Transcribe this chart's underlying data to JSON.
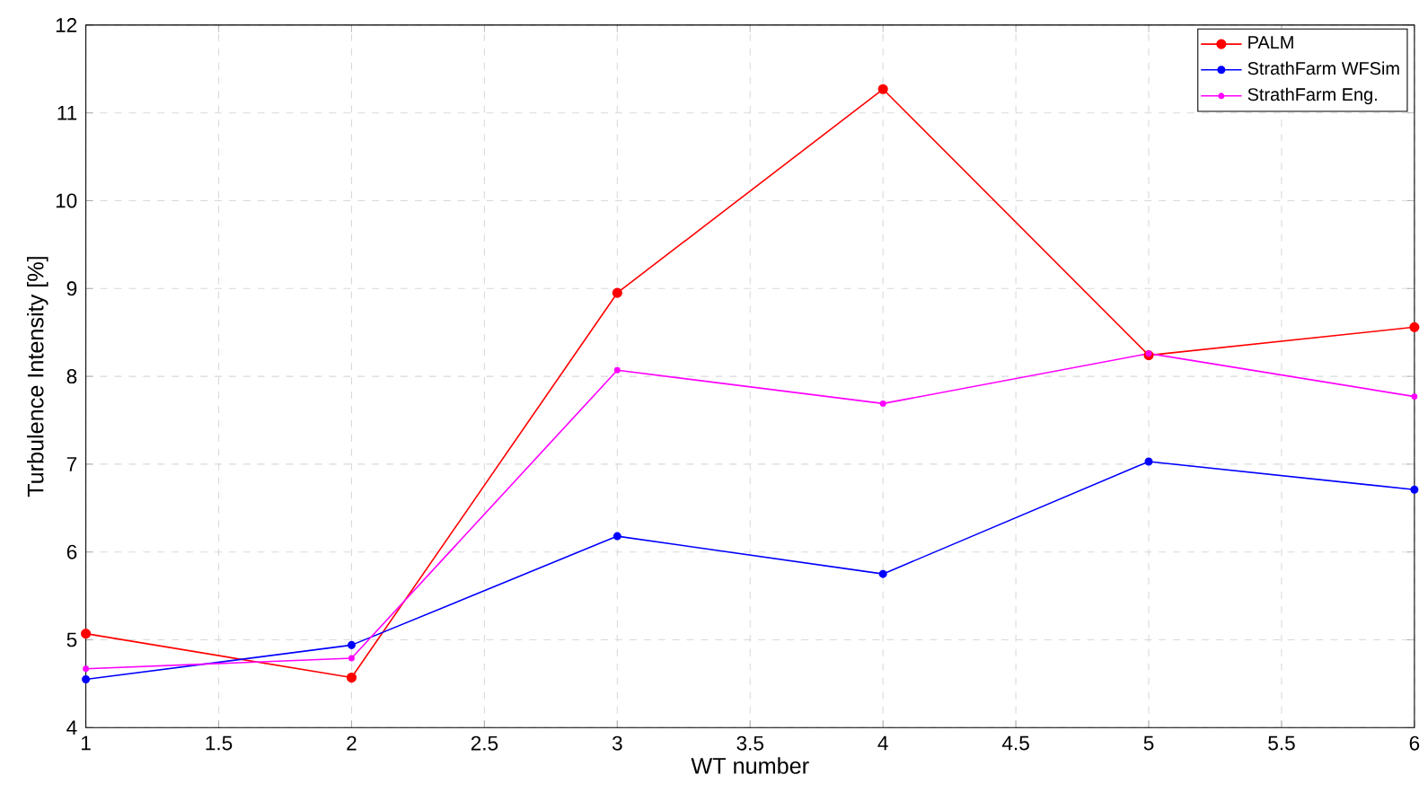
{
  "chart_data": {
    "type": "line",
    "xlabel": "WT number",
    "ylabel": "Turbulence Intensity [%]",
    "x": [
      1,
      2,
      3,
      4,
      5,
      6
    ],
    "series": [
      {
        "name": "PALM",
        "color": "#ff0000",
        "values": [
          5.07,
          4.57,
          8.95,
          11.27,
          8.24,
          8.56
        ]
      },
      {
        "name": "StrathFarm WFSim",
        "color": "#0000ff",
        "values": [
          4.55,
          4.94,
          6.18,
          5.75,
          7.03,
          6.71
        ]
      },
      {
        "name": "StrathFarm Eng.",
        "color": "#ff00ff",
        "values": [
          4.67,
          4.79,
          8.07,
          7.69,
          8.26,
          7.77
        ]
      }
    ],
    "xlim": [
      1,
      6
    ],
    "ylim": [
      4,
      12
    ],
    "xticks": [
      1,
      1.5,
      2,
      2.5,
      3,
      3.5,
      4,
      4.5,
      5,
      5.5,
      6
    ],
    "yticks": [
      4,
      5,
      6,
      7,
      8,
      9,
      10,
      11,
      12
    ],
    "grid": true,
    "legend": "top right",
    "marker": "circle",
    "line_style": "solid"
  }
}
